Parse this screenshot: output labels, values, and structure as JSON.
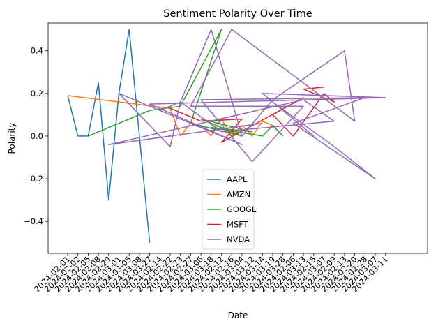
{
  "chart_data": {
    "type": "line",
    "title": "Sentiment Polarity Over Time",
    "xlabel": "Date",
    "ylabel": "Polarity",
    "ylim": [
      -0.55,
      0.53
    ],
    "yticks": [
      -0.4,
      -0.2,
      0.0,
      0.2,
      0.4
    ],
    "ytick_labels": [
      "−0.4",
      "−0.2",
      "0.0",
      "0.2",
      "0.4"
    ],
    "grid": false,
    "legend_position": "lower-center",
    "categories": [
      "2024-02-01",
      "2024-02-02",
      "2024-02-05",
      "2024-02-08",
      "2024-02-29",
      "2024-03-01",
      "2024-03-05",
      "2024-03-08",
      "2024-03-27",
      "2024-02-14",
      "2024-02-22",
      "2024-02-23",
      "2024-02-27",
      "2024-03-06",
      "2024-03-18",
      "2024-02-12",
      "2024-02-16",
      "2024-03-04",
      "2024-03-12",
      "2024-03-14",
      "2024-03-19",
      "2024-03-28",
      "2024-02-06",
      "2024-03-13",
      "2024-02-15",
      "2024-03-07",
      "2024-02-09",
      "2024-02-13",
      "2024-02-20",
      "2024-02-28",
      "2024-03-07",
      "2024-03-11"
    ],
    "series": [
      {
        "name": "AAPL",
        "color": "#1f77b4",
        "x": [
          0,
          1,
          2,
          3,
          4,
          5,
          6,
          7,
          8
        ],
        "y": [
          0.19,
          0.0,
          0.0,
          0.25,
          -0.3,
          0.2,
          0.5,
          0.0,
          -0.5
        ]
      },
      {
        "name": "AMZN",
        "color": "#ff7f0e",
        "x": [
          0,
          10,
          11,
          12,
          13,
          14,
          15,
          16,
          17,
          18,
          19,
          20,
          21
        ],
        "y": [
          0.19,
          0.13,
          0.0,
          0.06,
          0.05,
          0.0,
          0.08,
          0.0,
          0.05,
          0.0,
          0.07,
          0.05,
          0.0
        ]
      },
      {
        "name": "GOOGL",
        "color": "#2ca02c",
        "x": [
          2,
          8,
          11,
          15,
          12,
          17,
          13,
          18,
          14,
          19,
          20,
          21
        ],
        "y": [
          0.0,
          0.12,
          0.14,
          0.5,
          0.06,
          0.0,
          0.08,
          0.02,
          0.04,
          0.0,
          0.05,
          0.0
        ],
        "extra": [
          {
            "x": 6,
            "y": 0.065
          },
          {
            "x": 11,
            "y": 0.06
          },
          {
            "x": 16,
            "y": 0.04
          },
          {
            "x": 20,
            "y": 0.09
          },
          {
            "x": 21,
            "y": -0.01
          }
        ]
      },
      {
        "name": "MSFT",
        "color": "#d62728",
        "x": [
          10,
          13,
          17,
          15,
          23,
          20,
          22,
          25,
          26,
          23,
          25
        ],
        "y": [
          0.13,
          0.07,
          0.08,
          -0.03,
          0.18,
          0.1,
          0.0,
          0.2,
          0.16,
          0.22,
          0.23
        ]
      },
      {
        "name": "NVDA",
        "color": "#9467bd",
        "x": [
          9,
          11,
          14,
          17,
          20,
          27,
          28,
          16,
          12,
          23,
          18,
          13,
          29,
          22,
          30,
          26,
          20,
          24,
          19,
          31,
          8,
          17,
          5,
          10,
          11,
          15,
          26,
          23,
          4,
          19
        ],
        "y": [
          0.12,
          0.16,
          0.5,
          0.0,
          0.17,
          0.4,
          0.07,
          0.5,
          0.14,
          0.14,
          -0.12,
          0.17,
          0.18,
          0.06,
          -0.2,
          -0.05,
          0.16,
          0.0,
          0.2,
          0.18,
          0.15,
          -0.04,
          0.2,
          -0.05,
          0.16,
          0.02,
          0.07,
          0.17,
          -0.04,
          0.06
        ]
      }
    ]
  }
}
